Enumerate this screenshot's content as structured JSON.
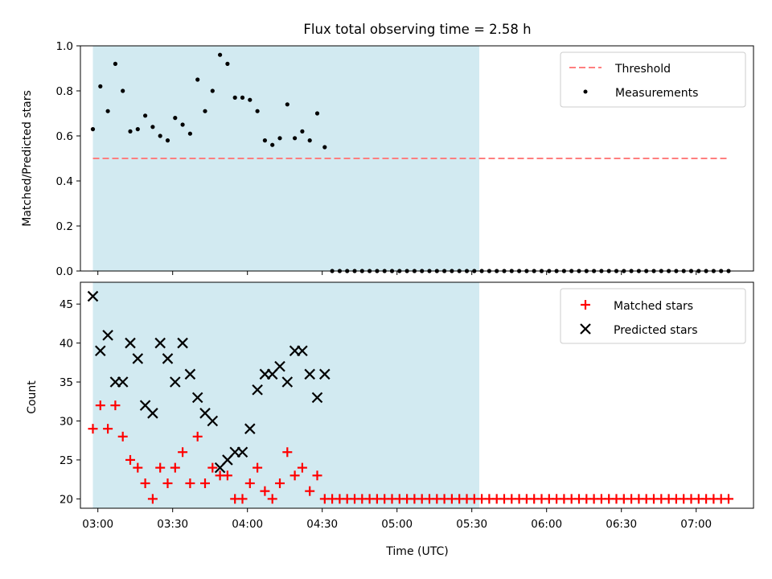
{
  "chart_data": {
    "type": "scatter",
    "title": "Flux total observing time = 2.58 h",
    "xlabel": "Time (UTC)",
    "x_ticks": [
      "03:00",
      "03:30",
      "04:00",
      "04:30",
      "05:00",
      "05:30",
      "06:00",
      "06:30",
      "07:00"
    ],
    "x_range": [
      "02:53",
      "07:23"
    ],
    "observing_window": [
      "02:58",
      "05:33"
    ],
    "shade_color": "#add8e6",
    "panels": [
      {
        "ylabel": "Matched/Predicted stars",
        "ylim": [
          0.0,
          1.0
        ],
        "y_ticks": [
          "0.0",
          "0.2",
          "0.4",
          "0.6",
          "0.8",
          "1.0"
        ],
        "legend": {
          "placement": "upper-right"
        },
        "series": [
          {
            "name": "Threshold",
            "kind": "dashed-line",
            "color": "#ff7f7f",
            "x": [
              "02:58",
              "07:13"
            ],
            "y": [
              0.5,
              0.5
            ]
          },
          {
            "name": "Measurements",
            "kind": "dot",
            "color": "#000000",
            "x": [
              "02:58",
              "03:01",
              "03:04",
              "03:07",
              "03:10",
              "03:13",
              "03:16",
              "03:19",
              "03:22",
              "03:25",
              "03:28",
              "03:31",
              "03:34",
              "03:37",
              "03:40",
              "03:43",
              "03:46",
              "03:49",
              "03:52",
              "03:55",
              "03:58",
              "04:01",
              "04:04",
              "04:07",
              "04:10",
              "04:13",
              "04:16",
              "04:19",
              "04:22",
              "04:25",
              "04:28",
              "04:31",
              "04:34",
              "04:37",
              "04:40",
              "04:43",
              "04:46",
              "04:49",
              "04:52",
              "04:55",
              "04:58",
              "05:01",
              "05:04",
              "05:07",
              "05:10",
              "05:13",
              "05:16",
              "05:19",
              "05:22",
              "05:25",
              "05:28",
              "05:31",
              "05:34",
              "05:37",
              "05:40",
              "05:43",
              "05:46",
              "05:49",
              "05:52",
              "05:55",
              "05:58",
              "06:01",
              "06:04",
              "06:07",
              "06:10",
              "06:13",
              "06:16",
              "06:19",
              "06:22",
              "06:25",
              "06:28",
              "06:31",
              "06:34",
              "06:37",
              "06:40",
              "06:43",
              "06:46",
              "06:49",
              "06:52",
              "06:55",
              "06:58",
              "07:01",
              "07:04",
              "07:07",
              "07:10",
              "07:13"
            ],
            "y": [
              0.63,
              0.82,
              0.71,
              0.92,
              0.8,
              0.62,
              0.63,
              0.69,
              0.64,
              0.6,
              0.58,
              0.68,
              0.65,
              0.61,
              0.85,
              0.71,
              0.8,
              0.96,
              0.92,
              0.77,
              0.77,
              0.76,
              0.71,
              0.58,
              0.56,
              0.59,
              0.74,
              0.59,
              0.62,
              0.58,
              0.7,
              0.55,
              0.0,
              0.0,
              0.0,
              0.0,
              0.0,
              0.0,
              0.0,
              0.0,
              0.0,
              0.0,
              0.0,
              0.0,
              0.0,
              0.0,
              0.0,
              0.0,
              0.0,
              0.0,
              0.0,
              0.0,
              0.0,
              0.0,
              0.0,
              0.0,
              0.0,
              0.0,
              0.0,
              0.0,
              0.0,
              0.0,
              0.0,
              0.0,
              0.0,
              0.0,
              0.0,
              0.0,
              0.0,
              0.0,
              0.0,
              0.0,
              0.0,
              0.0,
              0.0,
              0.0,
              0.0,
              0.0,
              0.0,
              0.0,
              0.0,
              0.0,
              0.0,
              0.0,
              0.0,
              0.0
            ]
          }
        ]
      },
      {
        "ylabel": "Count",
        "ylim": [
          18.8,
          47.8
        ],
        "y_ticks": [
          "20",
          "25",
          "30",
          "35",
          "40",
          "45"
        ],
        "legend": {
          "placement": "upper-right"
        },
        "series": [
          {
            "name": "Matched stars",
            "kind": "plus",
            "color": "#ff0000",
            "x": [
              "02:58",
              "03:01",
              "03:04",
              "03:07",
              "03:10",
              "03:13",
              "03:16",
              "03:19",
              "03:22",
              "03:25",
              "03:28",
              "03:31",
              "03:34",
              "03:37",
              "03:40",
              "03:43",
              "03:46",
              "03:49",
              "03:52",
              "03:55",
              "03:58",
              "04:01",
              "04:04",
              "04:07",
              "04:10",
              "04:13",
              "04:16",
              "04:19",
              "04:22",
              "04:25",
              "04:28",
              "04:31",
              "04:34",
              "04:37",
              "04:40",
              "04:43",
              "04:46",
              "04:49",
              "04:52",
              "04:55",
              "04:58",
              "05:01",
              "05:04",
              "05:07",
              "05:10",
              "05:13",
              "05:16",
              "05:19",
              "05:22",
              "05:25",
              "05:28",
              "05:31",
              "05:34",
              "05:37",
              "05:40",
              "05:43",
              "05:46",
              "05:49",
              "05:52",
              "05:55",
              "05:58",
              "06:01",
              "06:04",
              "06:07",
              "06:10",
              "06:13",
              "06:16",
              "06:19",
              "06:22",
              "06:25",
              "06:28",
              "06:31",
              "06:34",
              "06:37",
              "06:40",
              "06:43",
              "06:46",
              "06:49",
              "06:52",
              "06:55",
              "06:58",
              "07:01",
              "07:04",
              "07:07",
              "07:10",
              "07:13"
            ],
            "y": [
              29,
              32,
              29,
              32,
              28,
              25,
              24,
              22,
              20,
              24,
              22,
              24,
              26,
              22,
              28,
              22,
              24,
              23,
              23,
              20,
              20,
              22,
              24,
              21,
              20,
              22,
              26,
              23,
              24,
              21,
              23,
              20,
              20,
              20,
              20,
              20,
              20,
              20,
              20,
              20,
              20,
              20,
              20,
              20,
              20,
              20,
              20,
              20,
              20,
              20,
              20,
              20,
              20,
              20,
              20,
              20,
              20,
              20,
              20,
              20,
              20,
              20,
              20,
              20,
              20,
              20,
              20,
              20,
              20,
              20,
              20,
              20,
              20,
              20,
              20,
              20,
              20,
              20,
              20,
              20,
              20,
              20,
              20,
              20,
              20,
              20
            ]
          },
          {
            "name": "Predicted stars",
            "kind": "x",
            "color": "#000000",
            "x": [
              "02:58",
              "03:01",
              "03:04",
              "03:07",
              "03:10",
              "03:13",
              "03:16",
              "03:19",
              "03:22",
              "03:25",
              "03:28",
              "03:31",
              "03:34",
              "03:37",
              "03:40",
              "03:43",
              "03:46",
              "03:49",
              "03:52",
              "03:55",
              "03:58",
              "04:01",
              "04:04",
              "04:07",
              "04:10",
              "04:13",
              "04:16",
              "04:19",
              "04:22",
              "04:25",
              "04:28",
              "04:31"
            ],
            "y": [
              46,
              39,
              41,
              35,
              35,
              40,
              38,
              32,
              31,
              40,
              38,
              35,
              40,
              36,
              33,
              31,
              30,
              24,
              25,
              26,
              26,
              29,
              34,
              36,
              36,
              37,
              35,
              39,
              39,
              36,
              33,
              36
            ]
          }
        ]
      }
    ]
  }
}
